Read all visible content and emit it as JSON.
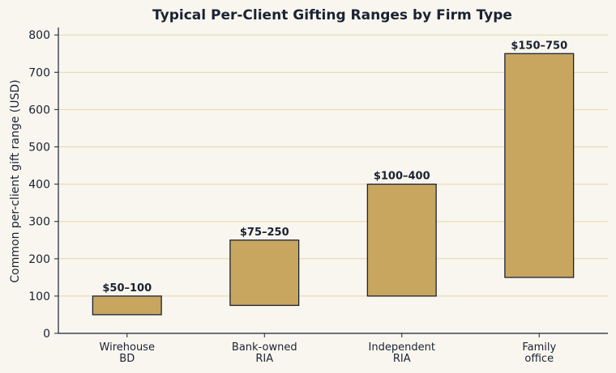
{
  "colors": {
    "background": "#f9f6ef",
    "bar_fill": "#c9a660",
    "bar_stroke": "#1a2233",
    "grid": "#e6d6ae",
    "axis": "#1a2233",
    "text": "#1a2233"
  },
  "chart_data": {
    "type": "bar",
    "subtype": "floating-range",
    "title": "Typical Per-Client Gifting Ranges by Firm Type",
    "xlabel": "",
    "ylabel": "Common per-client gift range (USD)",
    "ylim": [
      0,
      820
    ],
    "yticks": [
      0,
      100,
      200,
      300,
      400,
      500,
      600,
      700,
      800
    ],
    "grid": true,
    "categories": [
      [
        "Wirehouse",
        "BD"
      ],
      [
        "Bank-owned",
        "RIA"
      ],
      [
        "Independent",
        "RIA"
      ],
      [
        "Family",
        "office"
      ]
    ],
    "ranges": [
      {
        "low": 50,
        "high": 100,
        "label": "$50–100"
      },
      {
        "low": 75,
        "high": 250,
        "label": "$75–250"
      },
      {
        "low": 100,
        "high": 400,
        "label": "$100–400"
      },
      {
        "low": 150,
        "high": 750,
        "label": "$150–750"
      }
    ]
  }
}
